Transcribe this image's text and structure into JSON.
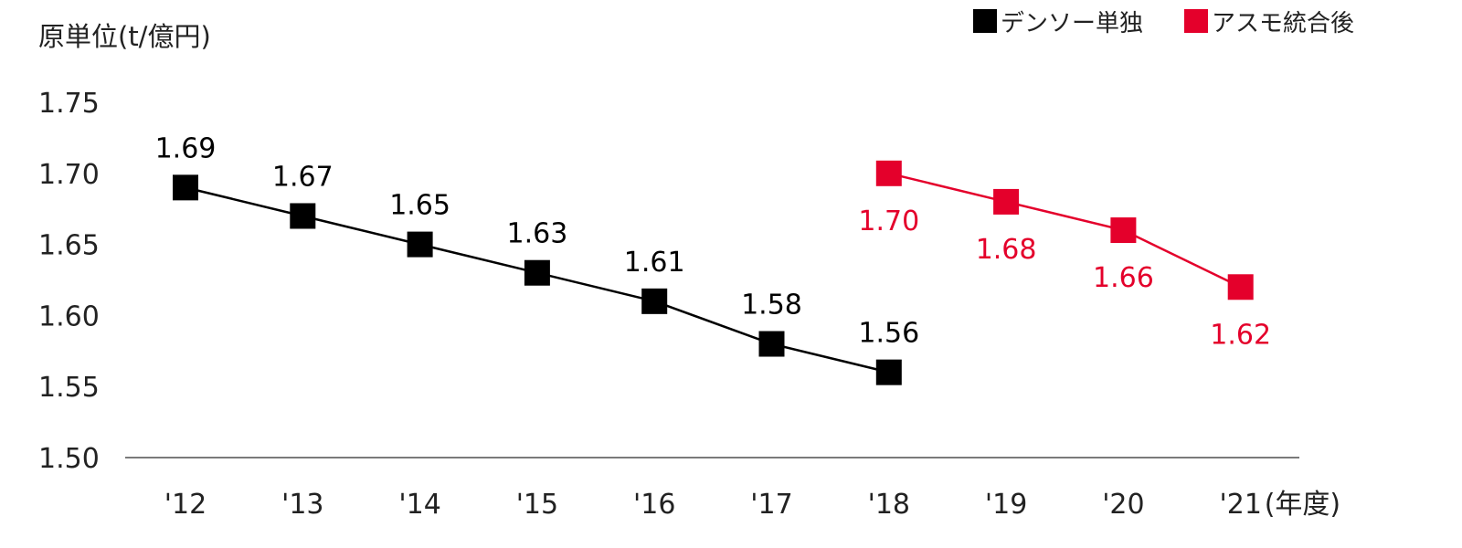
{
  "chart_data": {
    "type": "line",
    "ylabel": "原単位(t/億円)",
    "xunit": "(年度)",
    "categories": [
      "'12",
      "'13",
      "'14",
      "'15",
      "'16",
      "'17",
      "'18",
      "'19",
      "'20",
      "'21"
    ],
    "yticks": [
      "1.50",
      "1.55",
      "1.60",
      "1.65",
      "1.70",
      "1.75"
    ],
    "ylim": [
      1.5,
      1.75
    ],
    "grid": false,
    "legend_position": "top-right",
    "series": [
      {
        "name": "デンソー単独",
        "color": "#000000",
        "marker": "square",
        "label_position": "above",
        "x": [
          "'12",
          "'13",
          "'14",
          "'15",
          "'16",
          "'17",
          "'18"
        ],
        "values": [
          1.69,
          1.67,
          1.65,
          1.63,
          1.61,
          1.58,
          1.56
        ],
        "labels": [
          "1.69",
          "1.67",
          "1.65",
          "1.63",
          "1.61",
          "1.58",
          "1.56"
        ]
      },
      {
        "name": "アスモ統合後",
        "color": "#e4002b",
        "marker": "square",
        "label_position": "below",
        "x": [
          "'18",
          "'19",
          "'20",
          "'21"
        ],
        "values": [
          1.7,
          1.68,
          1.66,
          1.62
        ],
        "labels": [
          "1.70",
          "1.68",
          "1.66",
          "1.62"
        ]
      }
    ]
  }
}
